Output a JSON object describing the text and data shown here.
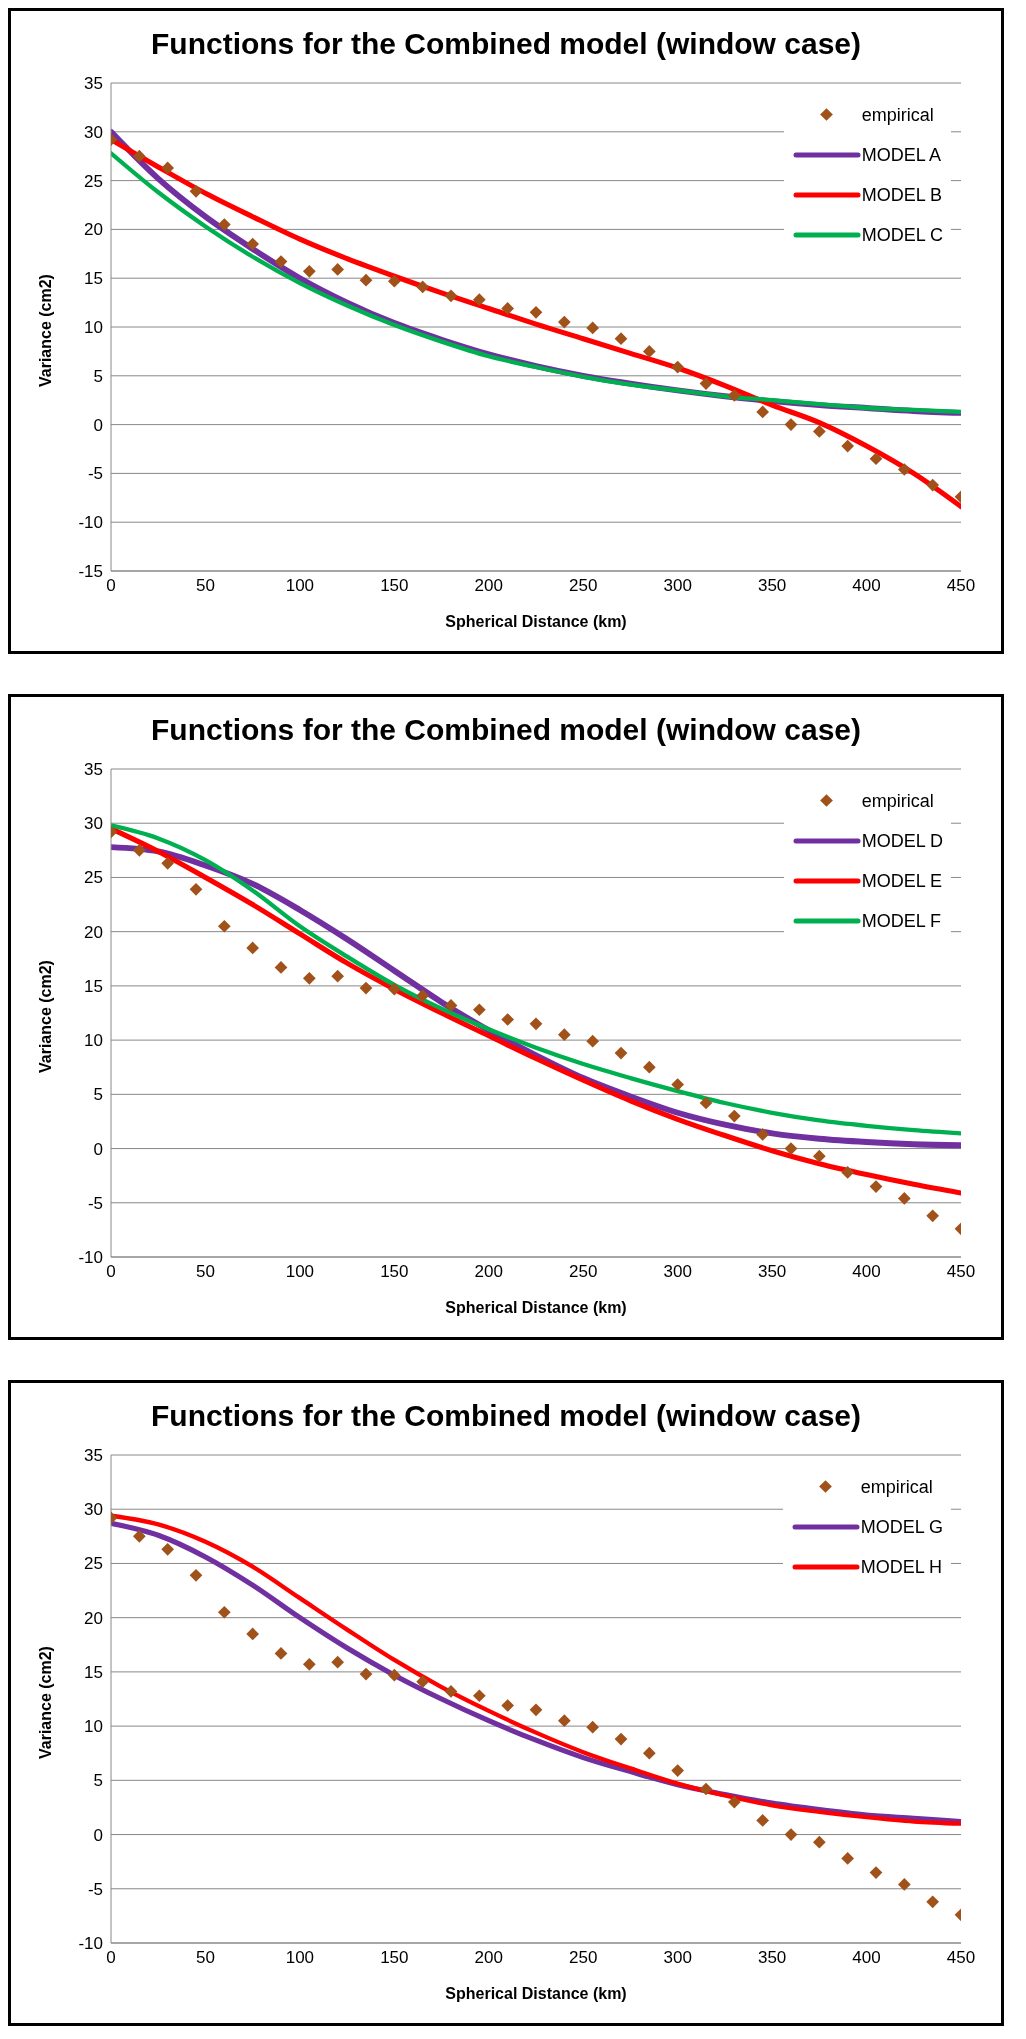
{
  "chart_data": [
    {
      "type": "line",
      "title": "Functions for the Combined model (window case)",
      "xlabel": "Spherical Distance (km)",
      "ylabel": "Variance (cm2)",
      "xlim": [
        0,
        450
      ],
      "xticks": [
        0,
        50,
        100,
        150,
        200,
        250,
        300,
        350,
        400,
        450
      ],
      "ylim": [
        -15,
        35
      ],
      "yticks": [
        -15,
        -10,
        -5,
        0,
        5,
        10,
        15,
        20,
        25,
        30,
        35
      ],
      "grid": "y",
      "legend": "top right",
      "series": [
        {
          "name": "empirical",
          "type": "scatter",
          "marker": "diamond",
          "color": "#a0521a",
          "x": [
            0,
            15,
            30,
            45,
            60,
            75,
            90,
            105,
            120,
            135,
            150,
            165,
            180,
            195,
            210,
            225,
            240,
            255,
            270,
            285,
            300,
            315,
            330,
            345,
            360,
            375,
            390,
            405,
            420,
            435,
            450
          ],
          "values": [
            29.2,
            27.5,
            26.3,
            23.9,
            20.5,
            18.5,
            16.7,
            15.7,
            15.9,
            14.8,
            14.7,
            14.1,
            13.2,
            12.8,
            11.9,
            11.5,
            10.5,
            9.9,
            8.8,
            7.5,
            5.9,
            4.2,
            3.0,
            1.3,
            0.0,
            -0.7,
            -2.2,
            -3.5,
            -4.6,
            -6.2,
            -7.4
          ]
        },
        {
          "name": "MODEL A",
          "marker": "none",
          "color": "#7030a0",
          "x": [
            0,
            25,
            50,
            75,
            100,
            125,
            150,
            175,
            200,
            225,
            250,
            275,
            300,
            325,
            350,
            375,
            400,
            425,
            450
          ],
          "values": [
            30,
            25.2,
            21.3,
            18.0,
            15.0,
            12.5,
            10.4,
            8.7,
            7.2,
            6.0,
            5.0,
            4.2,
            3.5,
            2.9,
            2.4,
            2.0,
            1.7,
            1.4,
            1.2
          ]
        },
        {
          "name": "MODEL B",
          "marker": "none",
          "color": "#ff0000",
          "x": [
            0,
            25,
            50,
            75,
            100,
            125,
            150,
            175,
            200,
            225,
            250,
            275,
            300,
            325,
            350,
            375,
            400,
            425,
            450
          ],
          "values": [
            29.2,
            26.4,
            23.7,
            21.3,
            19.0,
            17.0,
            15.2,
            13.5,
            11.9,
            10.3,
            8.8,
            7.3,
            5.8,
            4.0,
            2.0,
            0.2,
            -2.2,
            -5.0,
            -8.4
          ]
        },
        {
          "name": "MODEL C",
          "marker": "none",
          "color": "#00b050",
          "x": [
            0,
            25,
            50,
            75,
            100,
            125,
            150,
            175,
            200,
            225,
            250,
            275,
            300,
            325,
            350,
            375,
            400,
            425,
            450
          ],
          "values": [
            27.8,
            23.8,
            20.3,
            17.2,
            14.5,
            12.2,
            10.2,
            8.5,
            7.0,
            5.9,
            4.9,
            4.1,
            3.5,
            2.9,
            2.5,
            2.1,
            1.7,
            1.5,
            1.3
          ]
        }
      ]
    },
    {
      "type": "line",
      "title": "Functions for the Combined model (window case)",
      "xlabel": "Spherical Distance (km)",
      "ylabel": "Variance (cm2)",
      "xlim": [
        0,
        450
      ],
      "xticks": [
        0,
        50,
        100,
        150,
        200,
        250,
        300,
        350,
        400,
        450
      ],
      "ylim": [
        -10,
        35
      ],
      "yticks": [
        -10,
        -5,
        0,
        5,
        10,
        15,
        20,
        25,
        30,
        35
      ],
      "grid": "y",
      "legend": "top right",
      "series": [
        {
          "name": "empirical",
          "type": "scatter",
          "marker": "diamond",
          "color": "#a0521a",
          "x": [
            0,
            15,
            30,
            45,
            60,
            75,
            90,
            105,
            120,
            135,
            150,
            165,
            180,
            195,
            210,
            225,
            240,
            255,
            270,
            285,
            300,
            315,
            330,
            345,
            360,
            375,
            390,
            405,
            420,
            435,
            450
          ],
          "values": [
            29.2,
            27.5,
            26.3,
            23.9,
            20.5,
            18.5,
            16.7,
            15.7,
            15.9,
            14.8,
            14.7,
            14.1,
            13.2,
            12.8,
            11.9,
            11.5,
            10.5,
            9.9,
            8.8,
            7.5,
            5.9,
            4.2,
            3.0,
            1.3,
            0.0,
            -0.7,
            -2.2,
            -3.5,
            -4.6,
            -6.2,
            -7.4
          ]
        },
        {
          "name": "MODEL D",
          "marker": "none",
          "color": "#7030a0",
          "x": [
            0,
            25,
            50,
            75,
            100,
            125,
            150,
            175,
            200,
            225,
            250,
            275,
            300,
            325,
            350,
            375,
            400,
            425,
            450
          ],
          "values": [
            27.8,
            27.4,
            26.1,
            24.4,
            22.0,
            19.3,
            16.4,
            13.5,
            10.9,
            8.6,
            6.5,
            4.8,
            3.3,
            2.2,
            1.4,
            0.9,
            0.6,
            0.4,
            0.3
          ]
        },
        {
          "name": "MODEL E",
          "marker": "none",
          "color": "#ff0000",
          "x": [
            0,
            25,
            50,
            75,
            100,
            125,
            150,
            175,
            200,
            225,
            250,
            275,
            300,
            325,
            350,
            375,
            400,
            425,
            450
          ],
          "values": [
            29.5,
            27.4,
            25.0,
            22.5,
            19.8,
            17.1,
            14.7,
            12.5,
            10.4,
            8.3,
            6.3,
            4.4,
            2.7,
            1.2,
            -0.2,
            -1.4,
            -2.4,
            -3.3,
            -4.1
          ]
        },
        {
          "name": "MODEL F",
          "marker": "none",
          "color": "#00b050",
          "x": [
            0,
            25,
            50,
            75,
            100,
            125,
            150,
            175,
            200,
            225,
            250,
            275,
            300,
            325,
            350,
            375,
            400,
            425,
            450
          ],
          "values": [
            29.8,
            28.6,
            26.6,
            23.8,
            20.5,
            17.7,
            15.1,
            12.9,
            11.0,
            9.3,
            7.8,
            6.5,
            5.3,
            4.2,
            3.3,
            2.6,
            2.1,
            1.7,
            1.4
          ]
        }
      ]
    },
    {
      "type": "line",
      "title": "Functions for the Combined model (window case)",
      "xlabel": "Spherical Distance (km)",
      "ylabel": "Variance (cm2)",
      "xlim": [
        0,
        450
      ],
      "xticks": [
        0,
        50,
        100,
        150,
        200,
        250,
        300,
        350,
        400,
        450
      ],
      "ylim": [
        -10,
        35
      ],
      "yticks": [
        -10,
        -5,
        0,
        5,
        10,
        15,
        20,
        25,
        30,
        35
      ],
      "grid": "y",
      "legend": "top right",
      "series": [
        {
          "name": "empirical",
          "type": "scatter",
          "marker": "diamond",
          "color": "#a0521a",
          "x": [
            0,
            15,
            30,
            45,
            60,
            75,
            90,
            105,
            120,
            135,
            150,
            165,
            180,
            195,
            210,
            225,
            240,
            255,
            270,
            285,
            300,
            315,
            330,
            345,
            360,
            375,
            390,
            405,
            420,
            435,
            450
          ],
          "values": [
            29.2,
            27.5,
            26.3,
            23.9,
            20.5,
            18.5,
            16.7,
            15.7,
            15.9,
            14.8,
            14.7,
            14.1,
            13.2,
            12.8,
            11.9,
            11.5,
            10.5,
            9.9,
            8.8,
            7.5,
            5.9,
            4.2,
            3.0,
            1.3,
            0.0,
            -0.7,
            -2.2,
            -3.5,
            -4.6,
            -6.2,
            -7.4
          ]
        },
        {
          "name": "MODEL G",
          "marker": "none",
          "color": "#7030a0",
          "x": [
            0,
            25,
            50,
            75,
            100,
            125,
            150,
            175,
            200,
            225,
            250,
            275,
            300,
            325,
            350,
            375,
            400,
            425,
            450
          ],
          "values": [
            28.7,
            27.6,
            25.6,
            23.0,
            20.0,
            17.2,
            14.7,
            12.5,
            10.5,
            8.7,
            7.1,
            5.8,
            4.6,
            3.7,
            2.9,
            2.3,
            1.8,
            1.5,
            1.2
          ]
        },
        {
          "name": "MODEL H",
          "marker": "none",
          "color": "#ff0000",
          "x": [
            0,
            25,
            50,
            75,
            100,
            125,
            150,
            175,
            200,
            225,
            250,
            275,
            300,
            325,
            350,
            375,
            400,
            425,
            450
          ],
          "values": [
            29.4,
            28.6,
            27.0,
            24.7,
            21.8,
            18.9,
            16.1,
            13.6,
            11.4,
            9.4,
            7.6,
            6.1,
            4.7,
            3.6,
            2.7,
            2.1,
            1.6,
            1.2,
            1.0
          ]
        }
      ]
    }
  ]
}
